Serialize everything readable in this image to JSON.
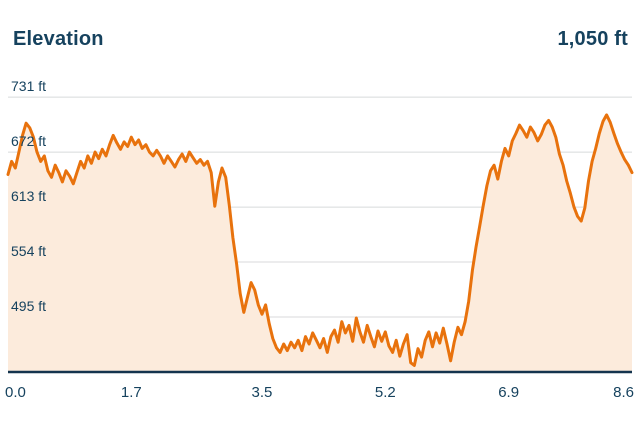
{
  "header": {
    "title": "Elevation",
    "value": "1,050 ft"
  },
  "colors": {
    "line": "#e8720d",
    "fill": "#fcebdc",
    "text": "#16425e",
    "grid": "#d8dadb",
    "axis": "#14344e"
  },
  "chart_data": {
    "type": "area",
    "title": "Elevation",
    "top_right_value": "1,050 ft",
    "xlabel": "",
    "ylabel": "",
    "xlim": [
      0,
      8.6
    ],
    "ylim": [
      436,
      758
    ],
    "grid": "horizontal",
    "yticks": [
      {
        "value": 731,
        "label": "731 ft"
      },
      {
        "value": 672,
        "label": "672 ft"
      },
      {
        "value": 613,
        "label": "613 ft"
      },
      {
        "value": 554,
        "label": "554 ft"
      },
      {
        "value": 495,
        "label": "495 ft"
      }
    ],
    "xticks": [
      {
        "value": 0.0,
        "label": "0.0"
      },
      {
        "value": 1.7,
        "label": "1.7"
      },
      {
        "value": 3.5,
        "label": "3.5"
      },
      {
        "value": 5.2,
        "label": "5.2"
      },
      {
        "value": 6.9,
        "label": "6.9"
      },
      {
        "value": 8.6,
        "label": "8.6"
      }
    ],
    "series": [
      {
        "name": "elevation-profile",
        "x0": 0,
        "dx": 0.05,
        "y": [
          648,
          662,
          655,
          672,
          690,
          703,
          698,
          688,
          672,
          662,
          668,
          652,
          645,
          658,
          650,
          640,
          652,
          646,
          638,
          650,
          662,
          655,
          668,
          660,
          672,
          665,
          675,
          668,
          680,
          690,
          682,
          675,
          683,
          678,
          688,
          680,
          685,
          676,
          680,
          672,
          668,
          674,
          668,
          660,
          668,
          662,
          656,
          664,
          670,
          662,
          672,
          666,
          660,
          664,
          658,
          662,
          650,
          614,
          640,
          655,
          645,
          615,
          580,
          552,
          520,
          500,
          516,
          532,
          524,
          508,
          498,
          508,
          488,
          472,
          462,
          457,
          466,
          459,
          468,
          462,
          470,
          459,
          474,
          466,
          478,
          470,
          462,
          472,
          457,
          474,
          481,
          468,
          490,
          478,
          486,
          469,
          494,
          479,
          468,
          486,
          474,
          463,
          480,
          469,
          479,
          464,
          457,
          470,
          453,
          466,
          476,
          446,
          443,
          461,
          452,
          470,
          479,
          463,
          478,
          467,
          483,
          466,
          448,
          468,
          484,
          476,
          490,
          512,
          545,
          570,
          592,
          615,
          636,
          652,
          658,
          643,
          662,
          676,
          668,
          684,
          692,
          701,
          695,
          688,
          699,
          693,
          684,
          691,
          701,
          706,
          699,
          688,
          670,
          658,
          641,
          628,
          613,
          603,
          598,
          612,
          641,
          662,
          676,
          692,
          705,
          712,
          704,
          692,
          681,
          672,
          664,
          658,
          650
        ]
      }
    ]
  }
}
